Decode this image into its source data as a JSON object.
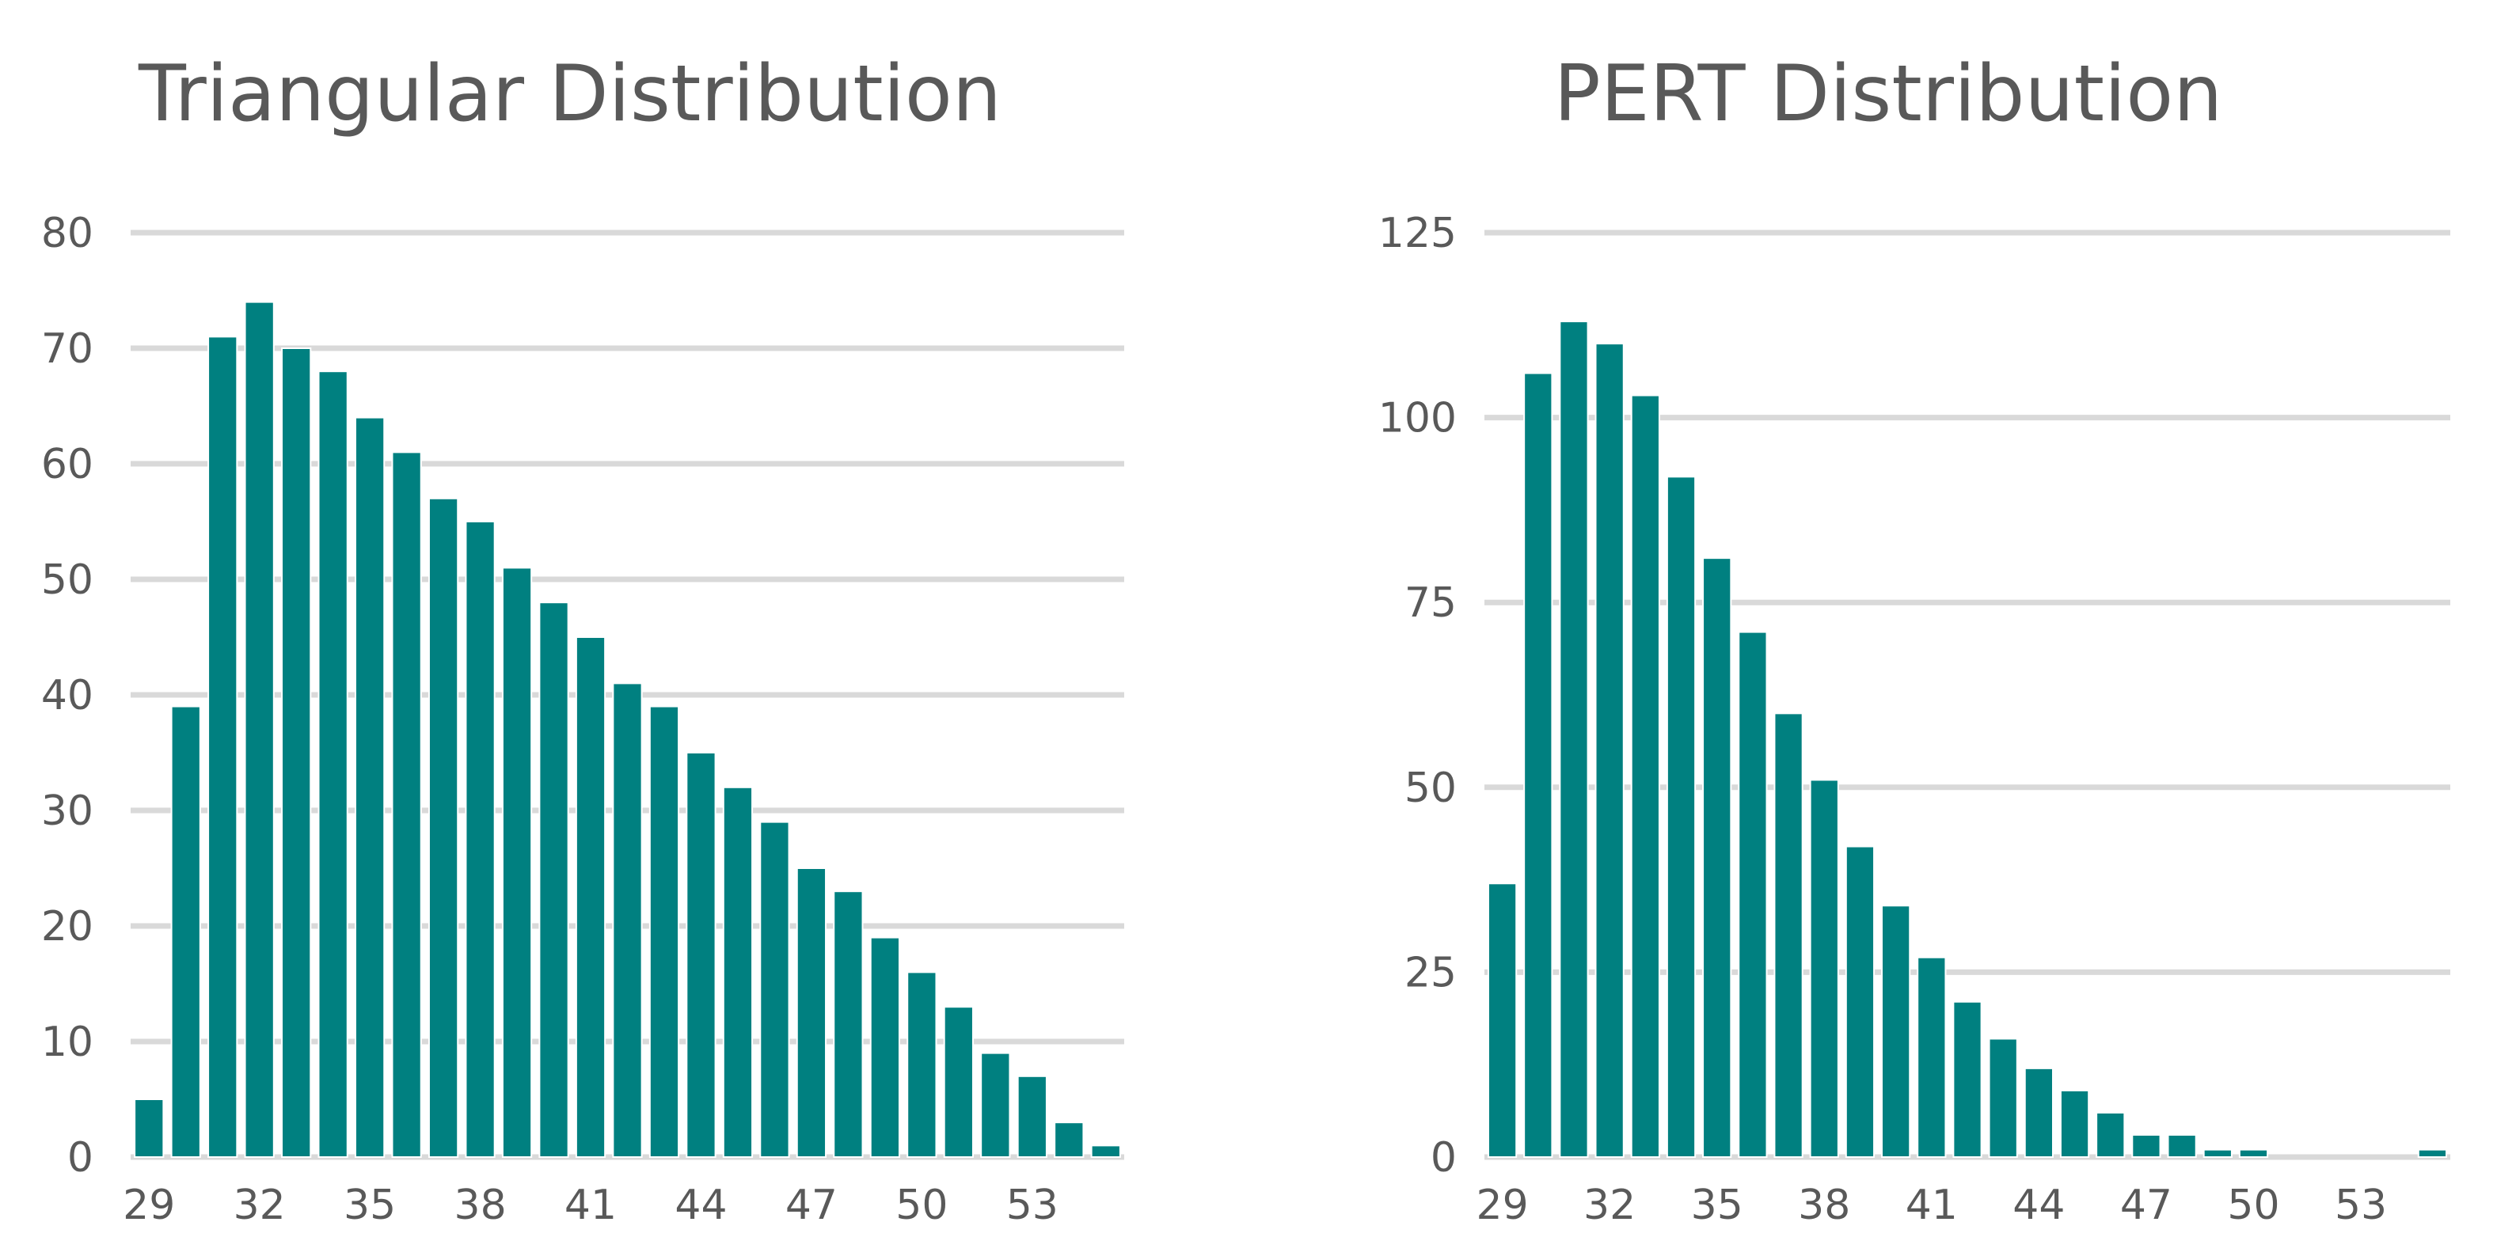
{
  "colors": {
    "bar": "#008080",
    "grid": "#d9d9d9",
    "text": "#595959",
    "background": "#ffffff"
  },
  "chart_data": [
    {
      "type": "bar",
      "title": "Triangular Distribution",
      "xlabel": "",
      "ylabel": "",
      "categories": [
        29,
        30,
        31,
        32,
        33,
        34,
        35,
        36,
        37,
        38,
        39,
        40,
        41,
        42,
        43,
        44,
        45,
        46,
        47,
        48,
        49,
        50,
        51,
        52,
        53,
        54,
        55
      ],
      "values": [
        5,
        39,
        71,
        74,
        70,
        68,
        64,
        61,
        57,
        55,
        51,
        48,
        45,
        41,
        39,
        35,
        32,
        29,
        25,
        23,
        19,
        16,
        13,
        9,
        7,
        3,
        1
      ],
      "x_tick_labels": [
        "29",
        "32",
        "35",
        "38",
        "41",
        "44",
        "47",
        "50",
        "53"
      ],
      "y_ticks": [
        0,
        10,
        20,
        30,
        40,
        50,
        60,
        70,
        80
      ],
      "ylim": [
        0,
        80
      ],
      "grid": true,
      "legend": "none"
    },
    {
      "type": "bar",
      "title": "PERT Distribution",
      "xlabel": "",
      "ylabel": "",
      "categories": [
        29,
        30,
        31,
        32,
        33,
        34,
        35,
        36,
        37,
        38,
        39,
        40,
        41,
        42,
        43,
        44,
        45,
        46,
        47,
        48,
        49,
        50,
        51,
        52,
        53,
        54,
        55
      ],
      "values": [
        37,
        106,
        113,
        110,
        103,
        92,
        81,
        71,
        60,
        51,
        42,
        34,
        27,
        21,
        16,
        12,
        9,
        6,
        3,
        3,
        1,
        1,
        0,
        0,
        0,
        0,
        1
      ],
      "x_tick_labels": [
        "29",
        "32",
        "35",
        "38",
        "41",
        "44",
        "47",
        "50",
        "53"
      ],
      "y_ticks": [
        0,
        25,
        50,
        75,
        100,
        125
      ],
      "ylim": [
        0,
        125
      ],
      "grid": true,
      "legend": "none"
    }
  ]
}
